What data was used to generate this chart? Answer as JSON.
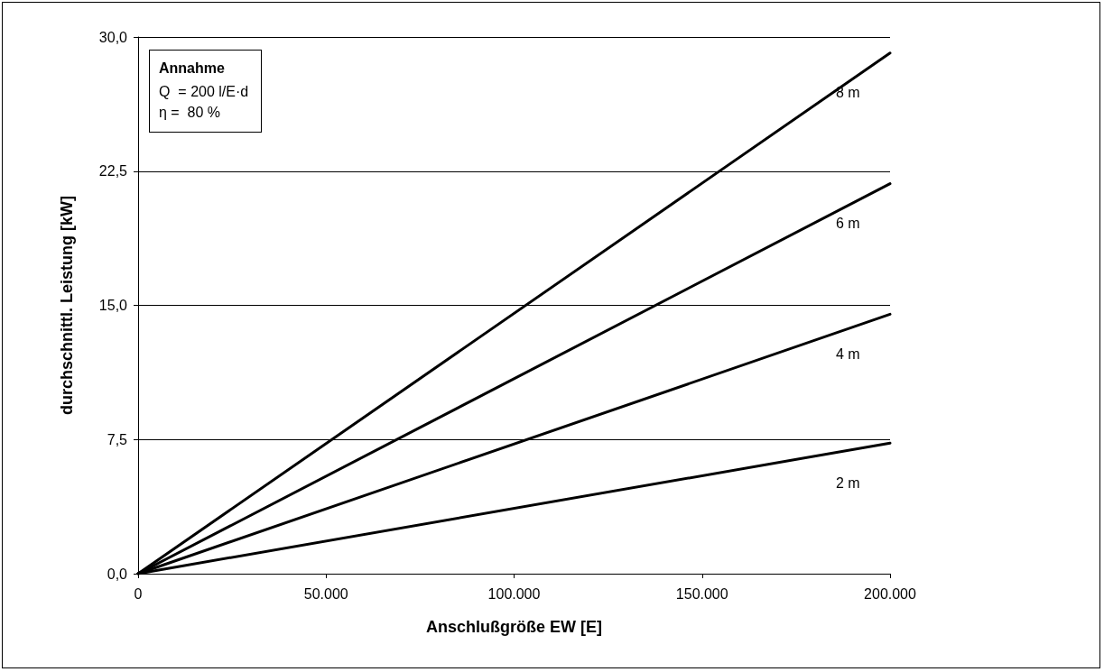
{
  "chart_data": {
    "type": "line",
    "xlabel": "Anschlußgröße EW [E]",
    "ylabel": "durchschnittl. Leistung [kW]",
    "x": [
      0,
      200000
    ],
    "series": [
      {
        "name": "8 m",
        "color": "#000000",
        "values": [
          0,
          29.1
        ]
      },
      {
        "name": "6 m",
        "color": "#000000",
        "values": [
          0,
          21.8
        ]
      },
      {
        "name": "4 m",
        "color": "#000000",
        "values": [
          0,
          14.5
        ]
      },
      {
        "name": "2 m",
        "color": "#000000",
        "values": [
          0,
          7.3
        ]
      }
    ],
    "xlim": [
      0,
      200000
    ],
    "xticks": [
      0,
      {
        "value": 50000,
        "label": "50.000"
      },
      {
        "value": 100000,
        "label": "100.000"
      },
      {
        "value": 150000,
        "label": "150.000"
      },
      {
        "value": 200000,
        "label": "200.000"
      }
    ],
    "ylim": [
      0,
      30
    ],
    "yticks": [
      {
        "value": 0,
        "label": "0,0"
      },
      {
        "value": 7.5,
        "label": "7,5"
      },
      {
        "value": 15,
        "label": "15,0"
      },
      {
        "value": 22.5,
        "label": "22,5"
      },
      {
        "value": 30,
        "label": "30,0"
      }
    ],
    "grid": "y",
    "marker": "none",
    "line_style": "solid",
    "annotations": [
      "Annahme",
      "Q  = 200 l/E·d",
      "η =  80 %"
    ]
  }
}
